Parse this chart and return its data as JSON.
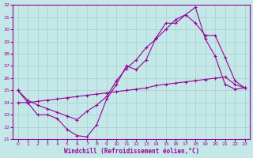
{
  "title": "",
  "xlabel": "Windchill (Refroidissement éolien,°C)",
  "ylabel": "",
  "bg_color": "#c4e8e8",
  "line_color": "#990099",
  "grid_color": "#aacccc",
  "xlim": [
    -0.5,
    23.5
  ],
  "ylim": [
    21,
    32
  ],
  "xticks": [
    0,
    1,
    2,
    3,
    4,
    5,
    6,
    7,
    8,
    9,
    10,
    11,
    12,
    13,
    14,
    15,
    16,
    17,
    18,
    19,
    20,
    21,
    22,
    23
  ],
  "yticks": [
    21,
    22,
    23,
    24,
    25,
    26,
    27,
    28,
    29,
    30,
    31,
    32
  ],
  "line1_x": [
    0,
    1,
    2,
    3,
    4,
    5,
    6,
    7,
    8,
    9,
    10,
    11,
    12,
    13,
    14,
    15,
    16,
    17,
    18,
    19,
    20,
    21,
    22,
    23
  ],
  "line1_y": [
    25.0,
    24.0,
    23.0,
    23.0,
    22.7,
    21.8,
    21.3,
    21.2,
    22.2,
    24.3,
    25.5,
    27.0,
    26.7,
    27.5,
    29.3,
    30.5,
    30.5,
    31.2,
    31.8,
    29.2,
    27.8,
    25.5,
    25.1,
    25.2
  ],
  "line2_x": [
    0,
    1,
    2,
    3,
    4,
    5,
    6,
    7,
    8,
    9,
    10,
    11,
    12,
    13,
    14,
    15,
    16,
    17,
    18,
    19,
    20,
    21,
    22,
    23
  ],
  "line2_y": [
    25.0,
    24.2,
    23.8,
    23.5,
    23.2,
    22.9,
    22.6,
    23.3,
    23.8,
    24.5,
    25.8,
    26.8,
    27.5,
    28.5,
    29.2,
    30.0,
    30.8,
    31.2,
    30.5,
    29.5,
    29.5,
    27.7,
    25.8,
    25.2
  ],
  "line3_x": [
    0,
    1,
    2,
    3,
    4,
    5,
    6,
    7,
    8,
    9,
    10,
    11,
    12,
    13,
    14,
    15,
    16,
    17,
    18,
    19,
    20,
    21,
    22,
    23
  ],
  "line3_y": [
    24.0,
    24.0,
    24.1,
    24.2,
    24.3,
    24.4,
    24.5,
    24.6,
    24.7,
    24.8,
    24.9,
    25.0,
    25.1,
    25.2,
    25.4,
    25.5,
    25.6,
    25.7,
    25.8,
    25.9,
    26.0,
    26.1,
    25.5,
    25.2
  ]
}
